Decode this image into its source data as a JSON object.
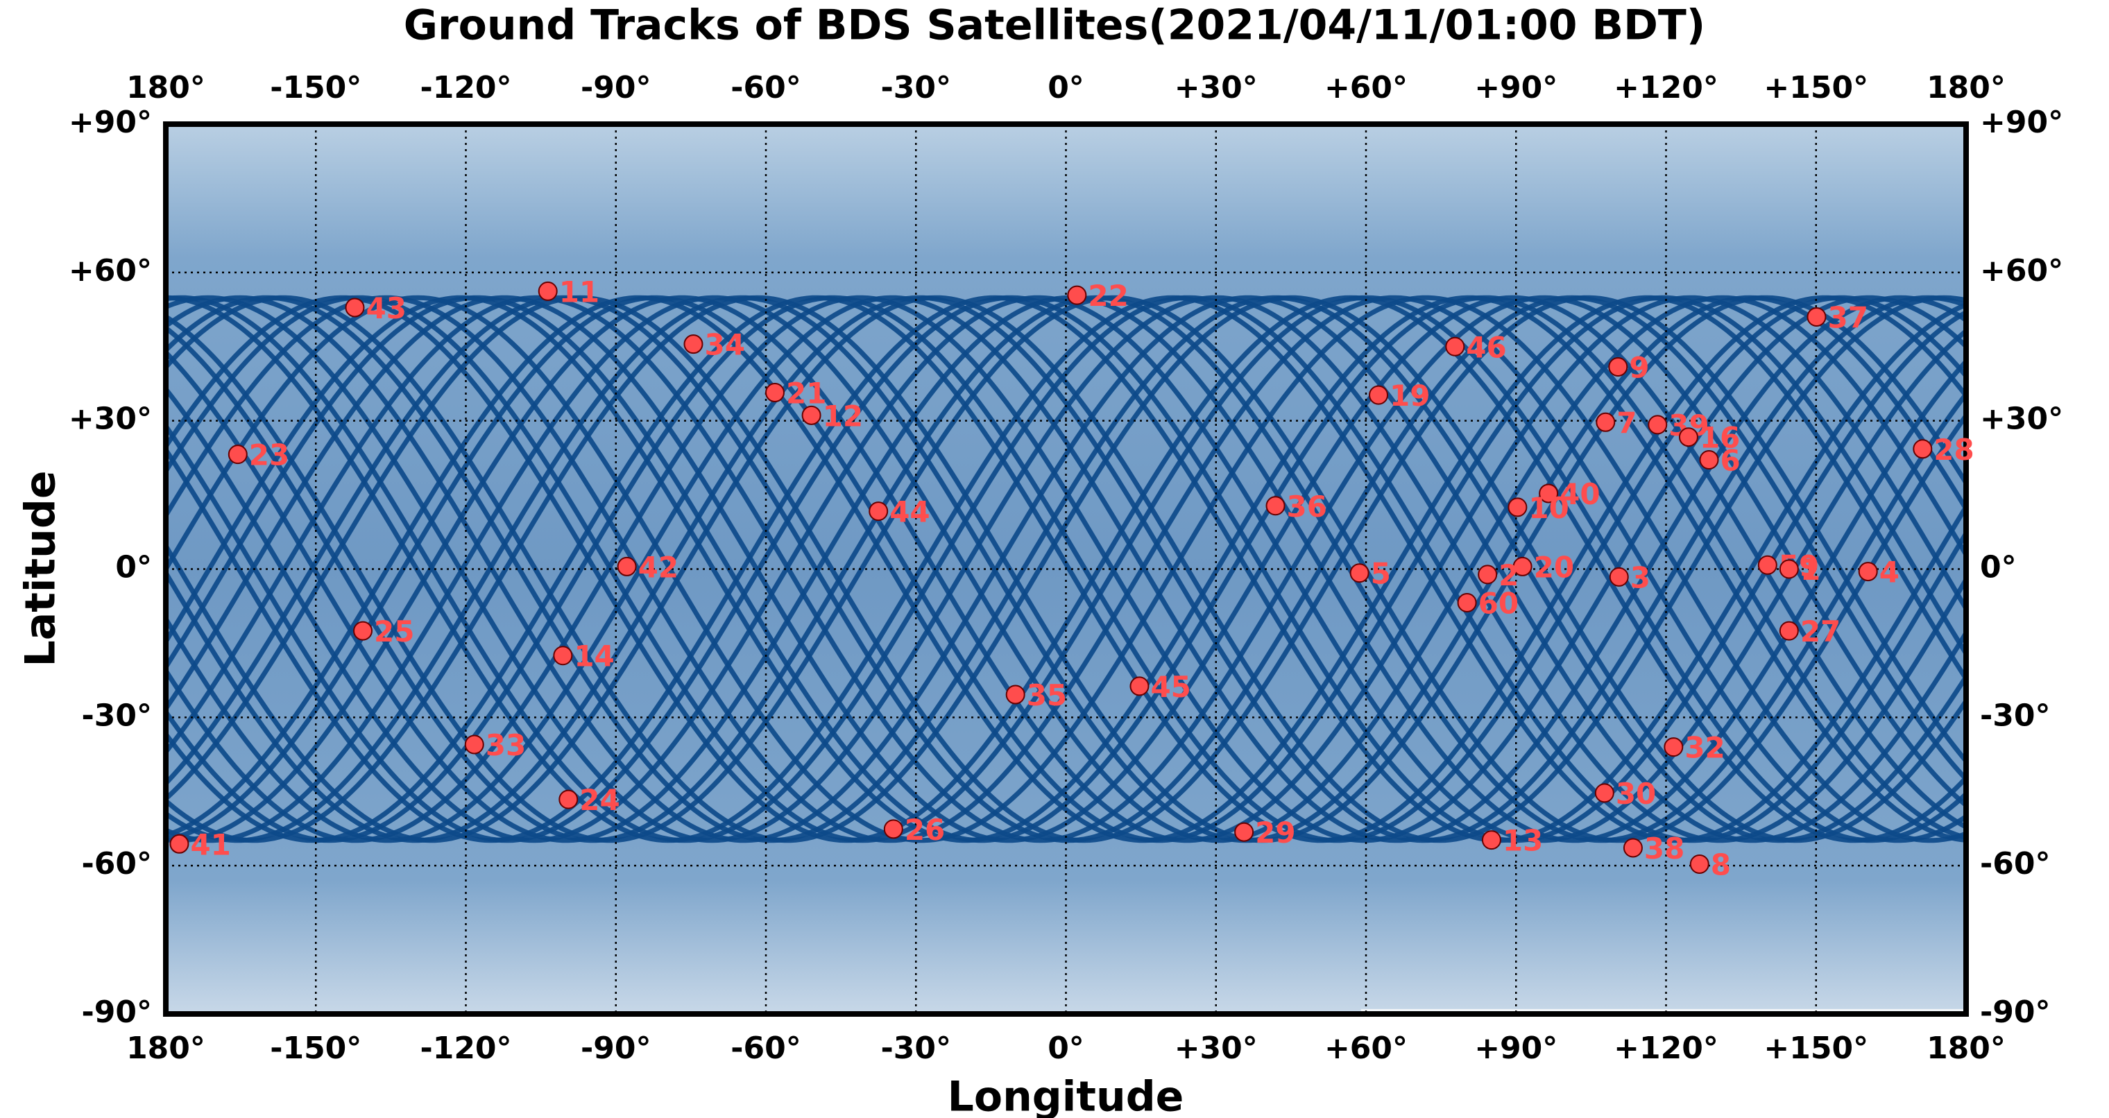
{
  "chart_data": {
    "type": "scatter",
    "title": "Ground Tracks of BDS Satellites(2021/04/11/01:00 BDT)",
    "xlabel": "Longitude",
    "ylabel": "Latitude",
    "xlim": [
      -180,
      180
    ],
    "ylim": [
      -90,
      90
    ],
    "xticks": [
      {
        "value": -180,
        "label": "180°"
      },
      {
        "value": -150,
        "label": "-150°"
      },
      {
        "value": -120,
        "label": "-120°"
      },
      {
        "value": -90,
        "label": "-90°"
      },
      {
        "value": -60,
        "label": "-60°"
      },
      {
        "value": -30,
        "label": "-30°"
      },
      {
        "value": 0,
        "label": "0°"
      },
      {
        "value": 30,
        "label": "+30°"
      },
      {
        "value": 60,
        "label": "+60°"
      },
      {
        "value": 90,
        "label": "+90°"
      },
      {
        "value": 120,
        "label": "+120°"
      },
      {
        "value": 150,
        "label": "+150°"
      },
      {
        "value": 180,
        "label": "180°"
      }
    ],
    "yticks": [
      {
        "value": 90,
        "label": "+90°"
      },
      {
        "value": 60,
        "label": "+60°"
      },
      {
        "value": 30,
        "label": "+30°"
      },
      {
        "value": 0,
        "label": "0°"
      },
      {
        "value": -30,
        "label": "-30°"
      },
      {
        "value": -60,
        "label": "-60°"
      },
      {
        "value": -90,
        "label": "-90°"
      }
    ],
    "grid": true,
    "color": "#ff4d4d",
    "track_color": "#0d4a8a",
    "point_labels": [
      "43",
      "11",
      "22",
      "37",
      "34",
      "46",
      "9",
      "21",
      "19",
      "12",
      "7",
      "39",
      "16",
      "28",
      "23",
      "6",
      "40",
      "36",
      "10",
      "44",
      "42",
      "59",
      "20",
      "1",
      "4",
      "5",
      "2",
      "3",
      "60",
      "25",
      "27",
      "14",
      "45",
      "35",
      "33",
      "32",
      "30",
      "24",
      "26",
      "29",
      "13",
      "41",
      "38",
      "8"
    ],
    "x": [
      -142.2,
      -103.6,
      2.2,
      150.1,
      -74.5,
      77.8,
      110.4,
      -58.2,
      62.5,
      -50.9,
      107.9,
      118.3,
      124.5,
      171.3,
      -165.6,
      128.6,
      96.5,
      41.9,
      90.3,
      -37.5,
      -87.8,
      140.3,
      91.3,
      144.6,
      160.4,
      58.7,
      84.3,
      110.6,
      80.2,
      -140.6,
      144.6,
      -100.6,
      14.7,
      -10.1,
      -118.3,
      121.5,
      107.7,
      -99.5,
      -34.5,
      35.6,
      85.1,
      -177.3,
      113.4,
      126.7
    ],
    "y": [
      52.9,
      56.2,
      55.4,
      51,
      45.5,
      45,
      40.9,
      35.7,
      35.2,
      31.1,
      29.7,
      29.2,
      26.7,
      24.3,
      23.2,
      22.1,
      15.3,
      12.8,
      12.5,
      11.7,
      0.5,
      0.8,
      0.5,
      0,
      -0.5,
      -0.8,
      -1.1,
      -1.6,
      -6.8,
      -12.5,
      -12.5,
      -17.5,
      -23.7,
      -25.4,
      -35.5,
      -36,
      -45.3,
      -46.6,
      -52.6,
      -53.2,
      -54.8,
      -55.6,
      -56.4,
      -59.7
    ]
  }
}
